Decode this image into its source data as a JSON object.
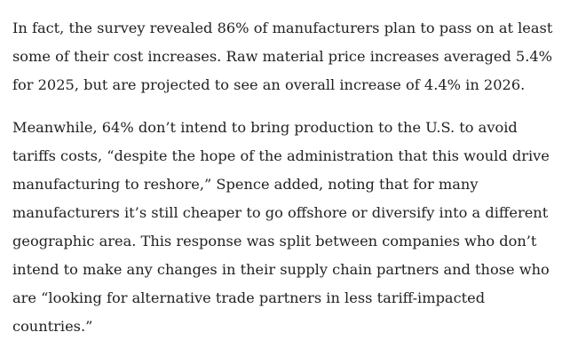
{
  "article": {
    "paragraphs": [
      {
        "lines": [
          "In fact, the survey revealed 86% of manufacturers plan to pass on at least",
          "some of their cost increases. Raw material price increases averaged 5.4%",
          "for 2025, but are projected to see an overall increase of 4.4% in 2026."
        ]
      },
      {
        "lines": [
          "Meanwhile, 64% don’t intend to bring production to the U.S. to avoid",
          "tariffs costs, “despite the hope of the administration that this would drive",
          "manufacturing to reshore,” Spence added, noting that for many",
          "manufacturers it’s still cheaper to go offshore or diversify into a different",
          "geographic area. This response was split between companies who don’t",
          "intend to make any changes in their supply chain partners and those who",
          "are “looking for alternative trade partners in less tariff-impacted",
          "countries.”"
        ]
      }
    ]
  }
}
